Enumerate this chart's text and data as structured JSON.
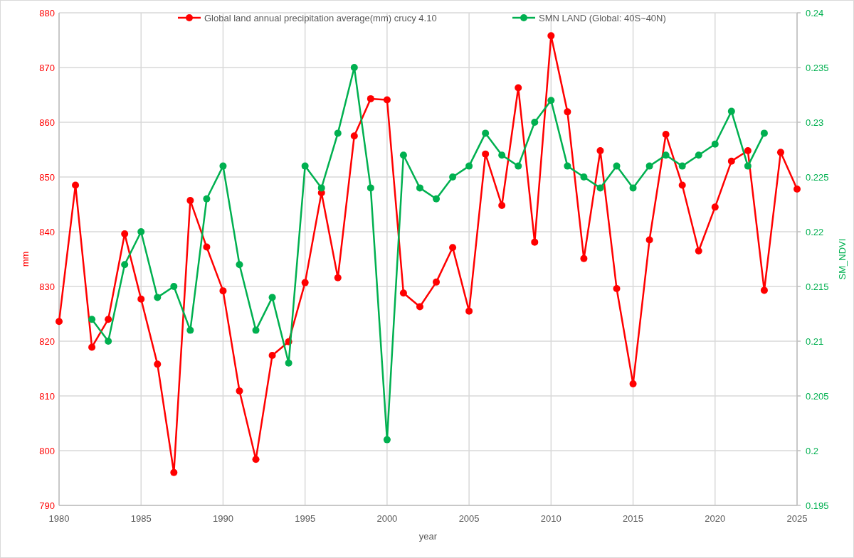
{
  "chart_data": {
    "type": "line",
    "xlabel": "year",
    "ylabel": "mm",
    "y2label": "SM_NDVI",
    "xlim": [
      1980,
      2025
    ],
    "xticks": [
      1980,
      1985,
      1990,
      1995,
      2000,
      2005,
      2010,
      2015,
      2020,
      2025
    ],
    "ylim": [
      790,
      880
    ],
    "yticks": [
      790,
      800,
      810,
      820,
      830,
      840,
      850,
      860,
      870,
      880
    ],
    "y2lim": [
      0.195,
      0.24
    ],
    "y2ticks": [
      0.195,
      0.2,
      0.205,
      0.21,
      0.215,
      0.22,
      0.225,
      0.23,
      0.235,
      0.24
    ],
    "grid": true,
    "legend": "top",
    "marker": "circle",
    "line_style": "solid",
    "series": [
      {
        "name": "Global land annual precipitation average(mm) crucy 4.10",
        "color": "#ff0000",
        "x": [
          1980,
          1981,
          1982,
          1983,
          1984,
          1985,
          1986,
          1987,
          1988,
          1989,
          1990,
          1991,
          1992,
          1993,
          1994,
          1995,
          1996,
          1997,
          1998,
          1999,
          2000,
          2001,
          2002,
          2003,
          2004,
          2005,
          2006,
          2007,
          2008,
          2009,
          2010,
          2011,
          2012,
          2013,
          2014,
          2015,
          2016,
          2017,
          2018,
          2019,
          2020,
          2021,
          2022,
          2023,
          2024,
          2025
        ],
        "values": [
          823.6,
          848.5,
          818.9,
          824,
          839.6,
          827.7,
          815.8,
          796,
          845.7,
          837.2,
          829.2,
          810.9,
          798.4,
          817.4,
          819.9,
          830.7,
          847.1,
          831.6,
          857.5,
          864.3,
          864.1,
          828.8,
          826.3,
          830.8,
          837.1,
          825.5,
          854.2,
          844.8,
          866.3,
          838.1,
          875.8,
          861.9,
          835.1,
          854.8,
          829.6,
          812.2,
          838.5,
          857.8,
          848.5,
          836.5,
          844.5,
          852.9,
          854.8,
          829.3,
          854.5,
          847.8
        ]
      },
      {
        "name": "SMN LAND (Global: 40S~40N)",
        "color": "#00b050",
        "axis": "y2",
        "x": [
          1982,
          1983,
          1984,
          1985,
          1986,
          1987,
          1988,
          1989,
          1990,
          1991,
          1992,
          1993,
          1994,
          1995,
          1996,
          1997,
          1998,
          1999,
          2000,
          2001,
          2002,
          2003,
          2004,
          2005,
          2006,
          2007,
          2008,
          2009,
          2010,
          2011,
          2012,
          2013,
          2014,
          2015,
          2016,
          2017,
          2018,
          2019,
          2020,
          2021,
          2022,
          2023
        ],
        "values": [
          0.212,
          0.21,
          0.217,
          0.22,
          0.214,
          0.215,
          0.211,
          0.223,
          0.226,
          0.217,
          0.211,
          0.214,
          0.208,
          0.226,
          0.224,
          0.229,
          0.235,
          0.224,
          0.201,
          0.227,
          0.224,
          0.223,
          0.225,
          0.226,
          0.229,
          0.227,
          0.226,
          0.23,
          0.232,
          0.226,
          0.225,
          0.224,
          0.226,
          0.224,
          0.226,
          0.227,
          0.226,
          0.227,
          0.228,
          0.231,
          0.226,
          0.229
        ]
      }
    ]
  }
}
